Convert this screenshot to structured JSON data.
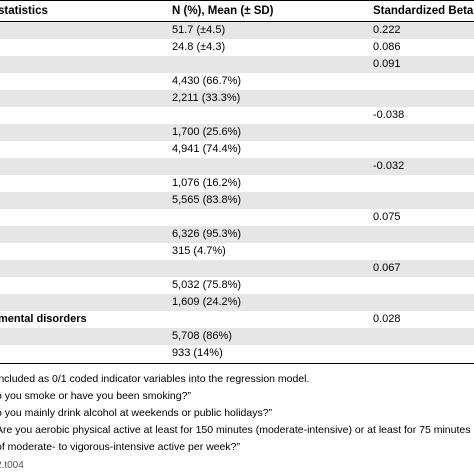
{
  "table": {
    "headers": [
      "statistics",
      "N (%), Mean (± SD)",
      "Standardized Beta"
    ],
    "rows": [
      {
        "label": "",
        "np": "51.7 (±4.5)",
        "beta": "0.222",
        "shade": true
      },
      {
        "label": "",
        "np": "24.8 (±4.3)",
        "beta": "0.086",
        "shade": false
      },
      {
        "label": "",
        "np": "",
        "beta": "0.091",
        "shade": true
      },
      {
        "label": "",
        "np": "4,430 (66.7%)",
        "beta": "",
        "shade": false
      },
      {
        "label": "",
        "np": "2,211 (33.3%)",
        "beta": "",
        "shade": true
      },
      {
        "label": "",
        "np": "",
        "beta": "-0.038",
        "shade": false
      },
      {
        "label": "",
        "np": "1,700 (25.6%)",
        "beta": "",
        "shade": true
      },
      {
        "label": "",
        "np": "4,941 (74.4%)",
        "beta": "",
        "shade": false
      },
      {
        "label": "",
        "np": "",
        "beta": "-0.032",
        "shade": true
      },
      {
        "label": "",
        "np": "1,076 (16.2%)",
        "beta": "",
        "shade": false
      },
      {
        "label": "",
        "np": "5,565 (83.8%)",
        "beta": "",
        "shade": true
      },
      {
        "label": "",
        "np": "",
        "beta": "0.075",
        "shade": false
      },
      {
        "label": "",
        "np": "6,326 (95.3%)",
        "beta": "",
        "shade": true
      },
      {
        "label": "",
        "np": "315 (4.7%)",
        "beta": "",
        "shade": false
      },
      {
        "label": "",
        "np": "",
        "beta": "0.067",
        "shade": true
      },
      {
        "label": "",
        "np": "5,032 (75.8%)",
        "beta": "",
        "shade": false
      },
      {
        "label": "",
        "np": "1,609 (24.2%)",
        "beta": "",
        "shade": true
      },
      {
        "label": "mental disorders",
        "np": "",
        "beta": "0.028",
        "shade": false
      },
      {
        "label": "",
        "np": "5,708 (86%)",
        "beta": "",
        "shade": true
      },
      {
        "label": "",
        "np": "933 (14%)",
        "beta": "",
        "shade": false
      }
    ]
  },
  "footnotes": [
    "included as 0/1 coded indicator variables into the regression model.",
    "o you smoke or have you been smoking?”",
    "o you mainly drink alcohol at weekends or public holidays?”",
    "Are you aerobic physical active at least for 150 minutes (moderate-intensive) or at least for 75 minutes",
    "of moderate- to vigorous-intensive active per week?”"
  ],
  "doi_fragment": "2.t004"
}
